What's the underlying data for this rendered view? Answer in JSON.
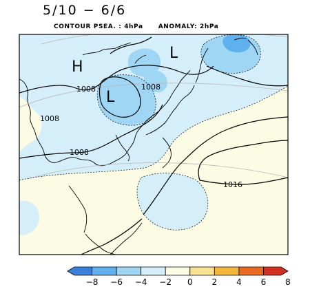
{
  "title": "5/10 − 6/6",
  "subtitle": {
    "contour": "CONTOUR PSEA. :  4hPa",
    "anomaly": "ANOMALY:  2hPa"
  },
  "map": {
    "contour_labels": [
      "1008",
      "1008",
      "1008",
      "1008",
      "1016"
    ],
    "pressure_markers": [
      "H",
      "L",
      "L"
    ]
  },
  "colorbar": {
    "ticks": [
      "−8",
      "−6",
      "−4",
      "−2",
      "0",
      "2",
      "4",
      "6",
      "8"
    ],
    "colors": [
      "#3a7fde",
      "#5fb0ee",
      "#9fd6f4",
      "#d4eefa",
      "#fcfbe3",
      "#fbe290",
      "#f4b73c",
      "#ea6a22",
      "#d12e1e"
    ]
  }
}
